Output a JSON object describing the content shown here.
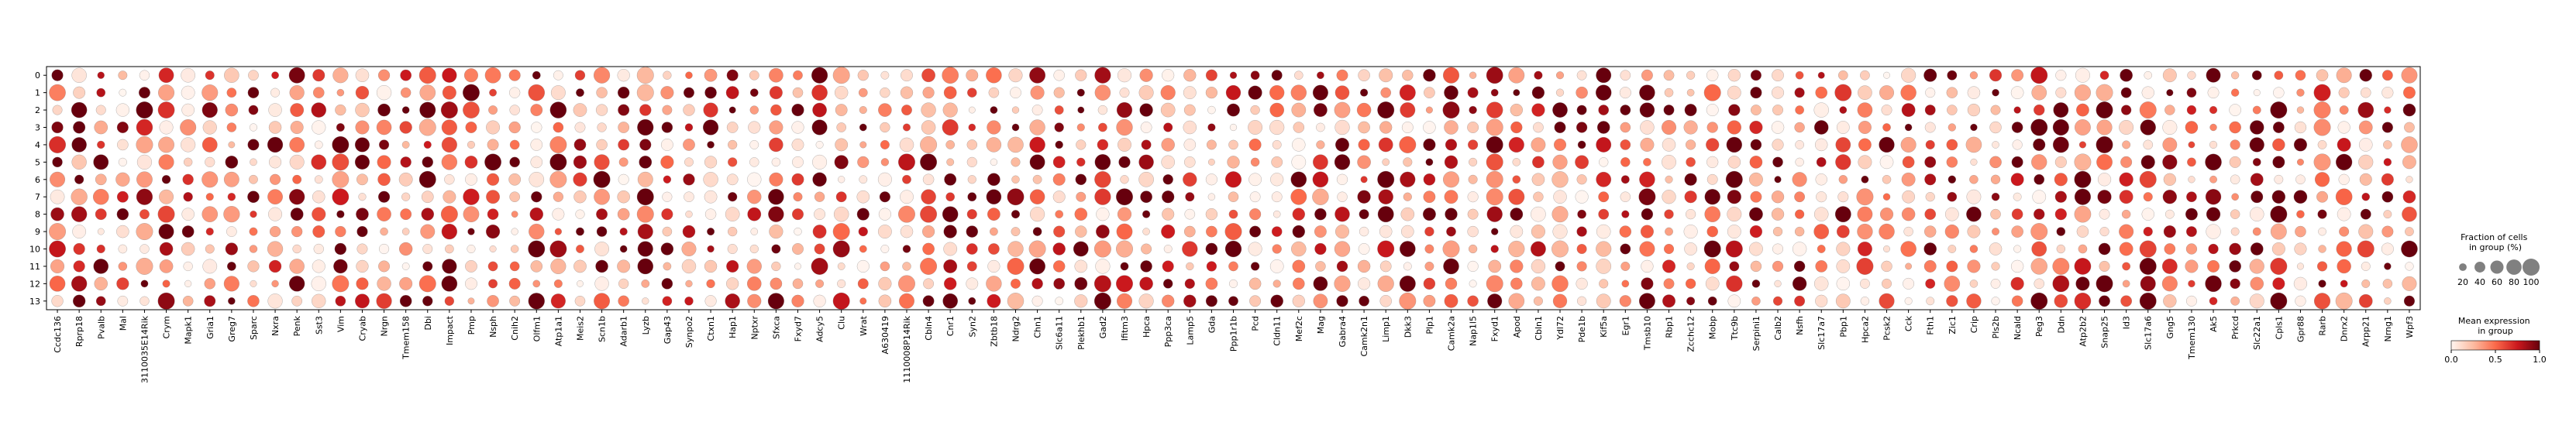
{
  "chart_data": {
    "type": "dotplot",
    "groups": [
      "0",
      "1",
      "2",
      "3",
      "4",
      "5",
      "6",
      "7",
      "8",
      "9",
      "10",
      "11",
      "12",
      "13"
    ],
    "genes": [
      "Ccdc136",
      "Rprp18",
      "Pvalb",
      "Mal",
      "3110035E14Rik",
      "Crym",
      "Mapk1",
      "Gria1",
      "Greg7",
      "Sparc",
      "Nxra",
      "Penk",
      "Sst3",
      "Vim",
      "Cryab",
      "Nrgn",
      "Tmem158",
      "Dbi",
      "Impact",
      "Pmp",
      "Nsph",
      "Cnih2",
      "Olfm1",
      "Atp1a1",
      "Meis2",
      "Scn1b",
      "Adarb1",
      "Lyzb",
      "Gap43",
      "Synpo2",
      "Ctxn1",
      "Hap1",
      "Nptxr",
      "Sfxca",
      "Fxyd7",
      "Adcy5",
      "Clu",
      "Wrat",
      "A630419",
      "1110008P14Rik",
      "Cbln4",
      "Cnr1",
      "Syn2",
      "Zbtb18",
      "Ndrg2",
      "Chn1",
      "Slc6a11",
      "Plekhb1",
      "Gad2",
      "Ifitm3",
      "Hpca",
      "Ppp3ca",
      "Lamp5",
      "Gda",
      "Ppp1r1b",
      "Pcd",
      "Cldn11",
      "Mef2c",
      "Mag",
      "Gabra4",
      "Camk2n1",
      "Limp1",
      "Dkk3",
      "Plp1",
      "Camk2a",
      "Nap1l5",
      "Fxyd1",
      "Apod",
      "Cbln1",
      "Ydl72",
      "Pde1b",
      "Kif5a",
      "Egr1",
      "Tmsb10",
      "Rbp1",
      "Zcchc12",
      "Mobp",
      "Ttc9b",
      "Serpini1",
      "Calb2",
      "Nsfh",
      "Slc17a7",
      "Pbp1",
      "Hpca2",
      "Pcsk2",
      "Cck",
      "Fth1",
      "Zic1",
      "Crip",
      "Pls2b",
      "Ncald",
      "Peg3",
      "Ddn",
      "Atp2b2",
      "Snap25",
      "Id3",
      "Slc17a6",
      "Gng5",
      "Tmem130",
      "Ak5",
      "Prkcd",
      "Slc22a1",
      "Cpls1",
      "Gpr88",
      "Rarb",
      "Dnrx2",
      "Arpp21",
      "Nrng1",
      "Wpf3"
    ],
    "color_scale": {
      "label": "Mean expression\nin group",
      "min": 0,
      "max": 1,
      "ticks": [
        "0.0",
        "0.5",
        "1.0"
      ],
      "colors": [
        "#fff5f0",
        "#fcbba1",
        "#fb6a4a",
        "#cb181d",
        "#67000d"
      ]
    },
    "size_scale": {
      "label": "Fraction of cells\nin group (%)",
      "ticks": [
        "20",
        "40",
        "60",
        "80",
        "100"
      ]
    }
  }
}
